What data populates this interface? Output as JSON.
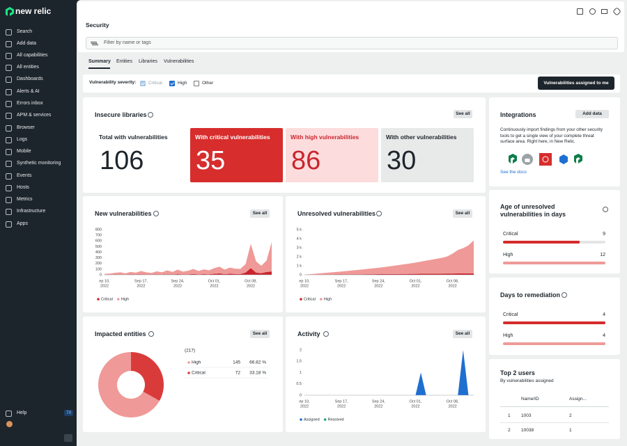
{
  "sidebar": {
    "logo": "new relic",
    "items": [
      "Search",
      "Add data",
      "All capabilities",
      "All entities",
      "Dashboards",
      "Alerts & AI",
      "Errors inbox",
      "APM & services",
      "Browser",
      "Logs",
      "Mobile",
      "Synthetic monitoring",
      "Events",
      "Hosts",
      "Metrics",
      "Infrastructure",
      "Apps"
    ],
    "help": "Help",
    "help_badge": 70
  },
  "header": {
    "title": "Security",
    "filter_placeholder": "Filter by name or tags"
  },
  "tabs": [
    "Summary",
    "Entities",
    "Libraries",
    "Vulnerabilities"
  ],
  "severity": {
    "label": "Vulnerability severity:",
    "options": [
      {
        "name": "Critical",
        "checked": true,
        "disabled": true
      },
      {
        "name": "High",
        "checked": true,
        "disabled": false
      },
      {
        "name": "Other",
        "checked": false,
        "disabled": false
      }
    ],
    "button": "Vulnerabilities assigned to me"
  },
  "insecure_libraries": {
    "title": "Insecure libraries",
    "see_all": "See all",
    "tiles": [
      {
        "label": "Total with vulnerabilities",
        "value": 106
      },
      {
        "label": "With critical vulnerabilities",
        "value": 35
      },
      {
        "label": "With high vulnerabilities",
        "value": 86
      },
      {
        "label": "With other vulnerabilities",
        "value": 30
      }
    ]
  },
  "integrations": {
    "title": "Integrations",
    "button": "Add data",
    "description": "Continuously import findings from your other security tools to get a single view of your complete threat surface area. Right here, in New Relic.",
    "link": "See the docs"
  },
  "new_vulnerabilities": {
    "title": "New vulnerabilities",
    "see_all": "See all",
    "chart": {
      "type": "area",
      "stacked": true,
      "categories": [
        [
          "ep 10,",
          "2022"
        ],
        null,
        null,
        null,
        null,
        null,
        null,
        [
          "Sep 17,",
          "2022"
        ],
        null,
        null,
        null,
        null,
        null,
        null,
        [
          "Sep 24,",
          "2022"
        ],
        null,
        null,
        null,
        null,
        null,
        null,
        [
          "Oct 01,",
          "2022"
        ],
        null,
        null,
        null,
        null,
        null,
        null,
        [
          "Oct 08,",
          "2022"
        ],
        null,
        null,
        null,
        null
      ],
      "series": [
        {
          "name": "Critical",
          "color": "#c9252d",
          "values": [
            2,
            3,
            5,
            4,
            3,
            6,
            4,
            8,
            5,
            4,
            6,
            5,
            10,
            6,
            12,
            7,
            8,
            15,
            8,
            12,
            10,
            18,
            25,
            12,
            20,
            15,
            14,
            40,
            120,
            40,
            30,
            50,
            60
          ]
        },
        {
          "name": "High",
          "color": "#ef9a98",
          "values": [
            15,
            20,
            30,
            40,
            25,
            45,
            35,
            60,
            40,
            30,
            55,
            40,
            70,
            45,
            80,
            50,
            65,
            90,
            60,
            85,
            70,
            100,
            120,
            80,
            110,
            95,
            90,
            150,
            430,
            200,
            130,
            200,
            520
          ]
        }
      ],
      "ylim": [
        0,
        800
      ],
      "yticks": [
        0,
        100,
        200,
        300,
        400,
        500,
        600,
        700,
        800
      ]
    }
  },
  "unresolved_vulnerabilities": {
    "title": "Unresolved vulnerabilities",
    "see_all": "See all",
    "chart": {
      "type": "area",
      "stacked": true,
      "categories": [
        [
          "ep 10,",
          "2022"
        ],
        null,
        null,
        null,
        null,
        null,
        null,
        [
          "Sep 17,",
          "2022"
        ],
        null,
        null,
        null,
        null,
        null,
        null,
        [
          "Sep 24,",
          "2022"
        ],
        null,
        null,
        null,
        null,
        null,
        null,
        [
          "Oct 01,",
          "2022"
        ],
        null,
        null,
        null,
        null,
        null,
        null,
        [
          "Oct 08,",
          "2022"
        ],
        null,
        null,
        null,
        null
      ],
      "series": [
        {
          "name": "Critical",
          "color": "#c9252d",
          "values": [
            5,
            10,
            15,
            20,
            25,
            30,
            35,
            40,
            45,
            50,
            55,
            60,
            65,
            70,
            75,
            80,
            85,
            90,
            95,
            100,
            105,
            110,
            115,
            120,
            125,
            130,
            135,
            140,
            145,
            150,
            155,
            160,
            165
          ]
        },
        {
          "name": "High",
          "color": "#ef9a98",
          "values": [
            20,
            60,
            100,
            150,
            200,
            240,
            280,
            330,
            380,
            430,
            480,
            540,
            600,
            650,
            700,
            780,
            850,
            920,
            1000,
            1080,
            1150,
            1250,
            1350,
            1450,
            1550,
            1650,
            1750,
            1900,
            2200,
            2600,
            2800,
            3100,
            3650
          ]
        }
      ],
      "ylim": [
        0,
        5000
      ],
      "yticks": [
        0,
        {
          "value": 1000,
          "label": "1 k"
        },
        {
          "value": 2000,
          "label": "2 k"
        },
        {
          "value": 3000,
          "label": "3 k"
        },
        {
          "value": 4000,
          "label": "4 k"
        },
        {
          "value": 5000,
          "label": "5 k"
        }
      ]
    }
  },
  "age_of_unresolved": {
    "title": "Age of unresolved vulnerabilities in days",
    "rows": [
      {
        "name": "Critical",
        "value": 9,
        "color": "#d52b2b"
      },
      {
        "name": "High",
        "value": 12,
        "color": "#ef9a98"
      }
    ]
  },
  "days_to_remediation": {
    "title": "Days to remediation",
    "rows": [
      {
        "name": "Critical",
        "value": 4,
        "color": "#d52b2b"
      },
      {
        "name": "High",
        "value": 4,
        "color": "#ef9a98"
      }
    ]
  },
  "impacted_entities": {
    "title": "Impacted entities",
    "see_all": "See all",
    "chart": {
      "type": "donut",
      "total": {
        "value": 217,
        "label": "(217)"
      },
      "categories": [
        "High",
        "Critical"
      ],
      "values": [
        145,
        72
      ],
      "shares": [
        66.82,
        33.18
      ],
      "value_labels": [
        "66.82 %",
        "33.18 %"
      ],
      "colors": [
        "#ef9a98",
        "#d93b3b"
      ]
    }
  },
  "activity": {
    "title": "Activity",
    "see_all": "See all",
    "chart": {
      "type": "area",
      "stacked": true,
      "categories": [
        [
          "ep 10,",
          "2022"
        ],
        null,
        null,
        null,
        null,
        null,
        null,
        [
          "Sep 17,",
          "2022"
        ],
        null,
        null,
        null,
        null,
        null,
        null,
        [
          "Sep 24,",
          "2022"
        ],
        null,
        null,
        null,
        null,
        null,
        null,
        [
          "Oct 01,",
          "2022"
        ],
        null,
        null,
        null,
        null,
        null,
        null,
        [
          "Oct 08,",
          "2022"
        ],
        null,
        null,
        null,
        null
      ],
      "series": [
        {
          "name": "Assigned",
          "color": "#1f6fd1",
          "values": [
            0,
            0,
            0,
            0,
            0,
            0,
            0,
            0,
            0,
            0,
            0,
            0,
            0,
            0,
            0,
            0,
            0,
            0,
            0,
            0,
            0,
            0,
            1,
            0,
            0,
            0,
            0,
            0,
            0,
            0,
            2,
            0,
            0
          ]
        },
        {
          "name": "Resolved",
          "color": "#11a97c",
          "values": [
            0,
            0,
            0,
            0,
            0,
            0,
            0,
            0,
            0,
            0,
            0,
            0,
            0,
            0,
            0,
            0,
            0,
            0,
            0,
            0,
            0,
            0,
            0,
            0,
            0,
            0,
            0,
            0,
            0,
            0,
            0,
            0,
            0
          ]
        }
      ],
      "ylim": [
        0,
        2
      ],
      "yticks": [
        0,
        0.5,
        1,
        1.5,
        2
      ]
    }
  },
  "top_users": {
    "title": "Top 2 users",
    "subtitle": "By vulnerabilities assigned",
    "columns": [
      "Name/ID",
      "Assign..."
    ],
    "rows": [
      {
        "rank": 1,
        "id": "1003",
        "count": 2
      },
      {
        "rank": 2,
        "id": "10038",
        "count": 1
      }
    ]
  }
}
